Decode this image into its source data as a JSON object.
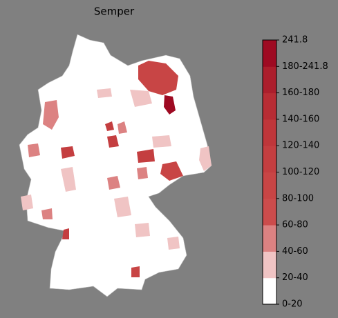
{
  "title": "Semper",
  "colorbar": {
    "labels": [
      "0-20",
      "20-40",
      "40-60",
      "60-80",
      "80-100",
      "100-120",
      "120-140",
      "140-160",
      "160-180",
      "180-241.8",
      "241.8"
    ],
    "colors": [
      "#ffffff",
      "#f0c4c4",
      "#dc8282",
      "#cc4c4c",
      "#c84545",
      "#c43e40",
      "#bf363a",
      "#b82c34",
      "#ac1e2c",
      "#9e0a22"
    ]
  }
}
